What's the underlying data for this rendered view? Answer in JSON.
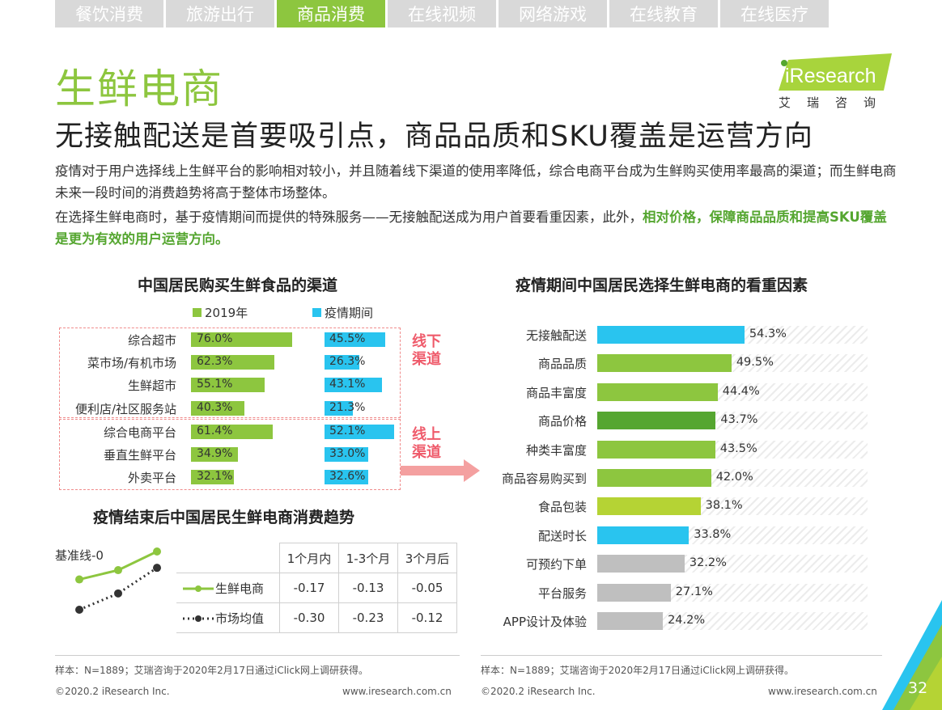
{
  "tabs": [
    {
      "label": "餐饮消费",
      "active": false
    },
    {
      "label": "旅游出行",
      "active": false
    },
    {
      "label": "商品消费",
      "active": true
    },
    {
      "label": "在线视频",
      "active": false
    },
    {
      "label": "网络游戏",
      "active": false
    },
    {
      "label": "在线教育",
      "active": false
    },
    {
      "label": "在线医疗",
      "active": false
    }
  ],
  "page_title": "生鲜电商",
  "subtitle": "无接触配送是首要吸引点，商品品质和SKU覆盖是运营方向",
  "logo": {
    "text": "iResearch",
    "sub": "艾瑞咨询"
  },
  "paragraph1": "疫情对于用户选择线上生鲜平台的影响相对较小，并且随着线下渠道的使用率降低，综合电商平台成为生鲜购买使用率最高的渠道；而生鲜电商未来一段时间的消费趋势将高于整体市场整体。",
  "paragraph2_plain": "在选择生鲜电商时，基于疫情期间而提供的特殊服务——无接触配送成为用户首要看重因素，此外，",
  "paragraph2_highlight": "相对价格，保障商品品质和提高SKU覆盖是更为有效的用户运营方向。",
  "colors": {
    "green": "#8dc63f",
    "blue": "#29c4ef",
    "dark_green": "#55a630",
    "lime": "#b5d334",
    "gray": "#bfbfbf",
    "pink": "#ef5b6b"
  },
  "chart_data": [
    {
      "type": "bar",
      "title": "中国居民购买生鲜食品的渠道",
      "categories": [
        "综合超市",
        "菜市场/有机市场",
        "生鲜超市",
        "便利店/社区服务站",
        "综合电商平台",
        "垂直生鲜平台",
        "外卖平台"
      ],
      "series": [
        {
          "name": "2019年",
          "values": [
            76.0,
            62.3,
            55.1,
            40.3,
            61.4,
            34.9,
            32.1
          ],
          "color": "#8dc63f"
        },
        {
          "name": "疫情期间",
          "values": [
            45.5,
            26.3,
            43.1,
            21.3,
            52.1,
            33.0,
            32.6
          ],
          "color": "#29c4ef"
        }
      ],
      "groups": [
        {
          "label": "线下\n渠道",
          "categories": [
            "综合超市",
            "菜市场/有机市场",
            "生鲜超市",
            "便利店/社区服务站"
          ]
        },
        {
          "label": "线上\n渠道",
          "categories": [
            "综合电商平台",
            "垂直生鲜平台",
            "外卖平台"
          ]
        }
      ],
      "unit": "%"
    },
    {
      "type": "bar",
      "title": "疫情期间中国居民选择生鲜电商的看重因素",
      "categories": [
        "无接触配送",
        "商品品质",
        "商品丰富度",
        "商品价格",
        "种类丰富度",
        "商品容易购买到",
        "食品包装",
        "配送时长",
        "可预约下单",
        "平台服务",
        "APP设计及体验"
      ],
      "values": [
        54.3,
        49.5,
        44.4,
        43.7,
        43.5,
        42.0,
        38.1,
        33.8,
        32.2,
        27.1,
        24.2
      ],
      "colors": [
        "#29c4ef",
        "#8dc63f",
        "#8dc63f",
        "#55a630",
        "#8dc63f",
        "#8dc63f",
        "#b5d334",
        "#29c4ef",
        "#bfbfbf",
        "#bfbfbf",
        "#bfbfbf"
      ],
      "unit": "%"
    },
    {
      "type": "line",
      "title": "疫情结束后中国居民生鲜电商消费趋势",
      "baseline_label": "基准线-0",
      "categories": [
        "1个月内",
        "1-3个月",
        "3个月后"
      ],
      "series": [
        {
          "name": "生鲜电商",
          "values": [
            -0.17,
            -0.13,
            -0.05
          ],
          "color": "#8dc63f"
        },
        {
          "name": "市场均值",
          "values": [
            -0.3,
            -0.23,
            -0.12
          ],
          "color": "#333333"
        }
      ]
    }
  ],
  "footer": {
    "left_sample": "样本：N=1889；艾瑞咨询于2020年2月17日通过iClick网上调研获得。",
    "right_sample": "样本：N=1889；艾瑞咨询于2020年2月17日通过iClick网上调研获得。",
    "copyright_left": "©2020.2 iResearch Inc.",
    "url_left": "www.iresearch.com.cn",
    "copyright_right": "©2020.2 iResearch Inc.",
    "url_right": "www.iresearch.com.cn",
    "page_number": "32"
  }
}
